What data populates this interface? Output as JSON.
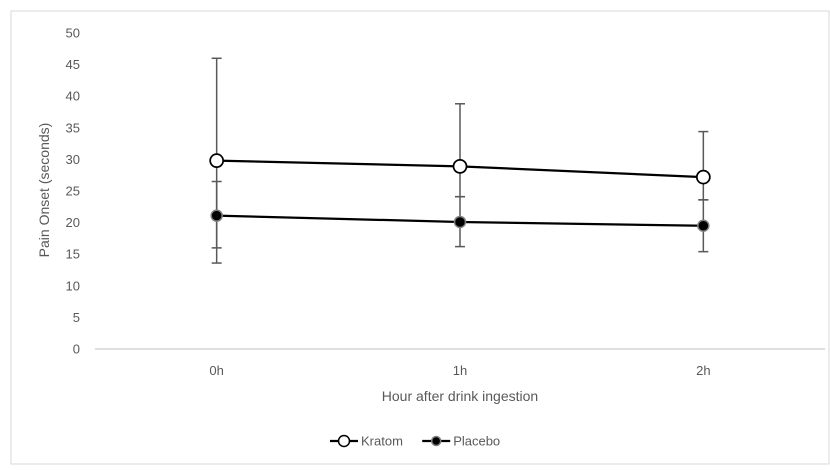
{
  "chart_data": {
    "type": "line",
    "title": "",
    "xlabel": "Hour after drink ingestion",
    "ylabel": "Pain Onset (seconds)",
    "categories": [
      "0h",
      "1h",
      "2h"
    ],
    "ylim": [
      0,
      50
    ],
    "yticks": [
      0,
      5,
      10,
      15,
      20,
      25,
      30,
      35,
      40,
      45,
      50
    ],
    "grid": false,
    "legend_position": "bottom",
    "series": [
      {
        "name": "Kratom",
        "marker": "open-circle",
        "color": "#000000",
        "values": [
          29.8,
          28.9,
          27.2
        ],
        "error_low": [
          16.0,
          24.1,
          23.6
        ],
        "error_high": [
          46.0,
          38.8,
          34.4
        ]
      },
      {
        "name": "Placebo",
        "marker": "filled-circle",
        "color": "#000000",
        "values": [
          21.1,
          20.1,
          19.5
        ],
        "error_low": [
          13.6,
          16.2,
          15.4
        ],
        "error_high": [
          26.5,
          24.1,
          23.6
        ]
      }
    ]
  }
}
